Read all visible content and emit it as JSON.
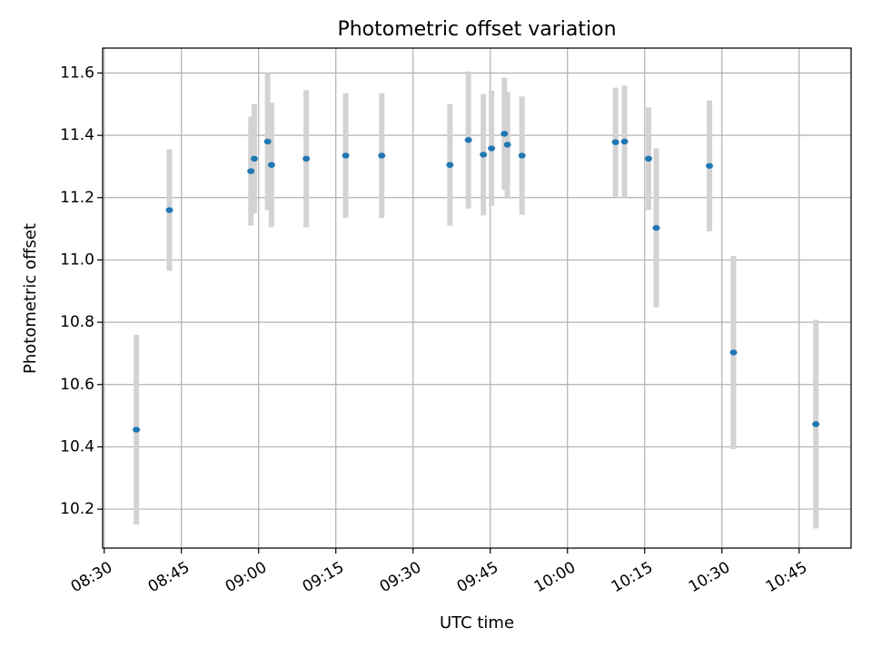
{
  "chart_data": {
    "type": "scatter",
    "title": "Photometric offset variation",
    "xlabel": "UTC time",
    "ylabel": "Photometric offset",
    "x_ticks": [
      "08:30",
      "08:45",
      "09:00",
      "09:15",
      "09:30",
      "09:45",
      "10:00",
      "10:15",
      "10:30",
      "10:45"
    ],
    "x_tick_minutes": [
      510,
      525,
      540,
      555,
      570,
      585,
      600,
      615,
      630,
      645
    ],
    "y_ticks": [
      "10.2",
      "10.4",
      "10.6",
      "10.8",
      "11.0",
      "11.2",
      "11.4",
      "11.6"
    ],
    "y_tick_values": [
      10.2,
      10.4,
      10.6,
      10.8,
      11.0,
      11.2,
      11.4,
      11.6
    ],
    "xlim_minutes": [
      509.7,
      655.1
    ],
    "ylim": [
      10.075,
      11.68
    ],
    "grid": true,
    "point_color": "#1f77b4",
    "errorbar_color": "#d3d3d3",
    "points": [
      {
        "t": "08:36:15",
        "y": 10.455,
        "err": 0.305
      },
      {
        "t": "08:42:40",
        "y": 11.16,
        "err": 0.195
      },
      {
        "t": "08:58:30",
        "y": 11.285,
        "err": 0.175
      },
      {
        "t": "08:59:10",
        "y": 11.325,
        "err": 0.175
      },
      {
        "t": "09:01:45",
        "y": 11.38,
        "err": 0.22
      },
      {
        "t": "09:02:30",
        "y": 11.305,
        "err": 0.2
      },
      {
        "t": "09:09:15",
        "y": 11.325,
        "err": 0.22
      },
      {
        "t": "09:16:55",
        "y": 11.335,
        "err": 0.2
      },
      {
        "t": "09:23:55",
        "y": 11.335,
        "err": 0.2
      },
      {
        "t": "09:37:10",
        "y": 11.305,
        "err": 0.195
      },
      {
        "t": "09:40:45",
        "y": 11.385,
        "err": 0.22
      },
      {
        "t": "09:43:40",
        "y": 11.338,
        "err": 0.195
      },
      {
        "t": "09:45:15",
        "y": 11.358,
        "err": 0.185
      },
      {
        "t": "09:47:45",
        "y": 11.405,
        "err": 0.18
      },
      {
        "t": "09:48:20",
        "y": 11.37,
        "err": 0.17
      },
      {
        "t": "09:51:10",
        "y": 11.335,
        "err": 0.19
      },
      {
        "t": "10:09:20",
        "y": 11.378,
        "err": 0.175
      },
      {
        "t": "10:11:05",
        "y": 11.38,
        "err": 0.18
      },
      {
        "t": "10:15:45",
        "y": 11.325,
        "err": 0.165
      },
      {
        "t": "10:17:15",
        "y": 11.103,
        "err": 0.255
      },
      {
        "t": "10:27:35",
        "y": 11.302,
        "err": 0.21
      },
      {
        "t": "10:32:15",
        "y": 10.703,
        "err": 0.31
      },
      {
        "t": "10:48:15",
        "y": 10.473,
        "err": 0.335
      }
    ]
  }
}
